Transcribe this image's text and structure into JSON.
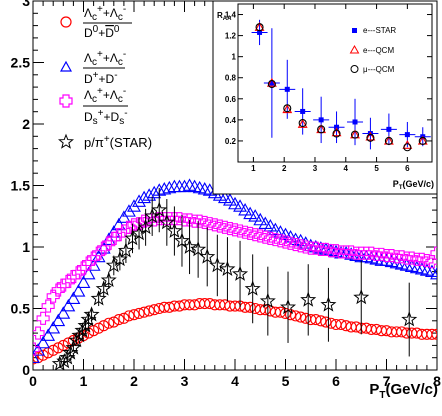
{
  "chart_data": [
    {
      "type": "scatter",
      "xlabel": "P",
      "xlabel_sub": "T",
      "xlabel_unit": "(GeV/c)",
      "xlim": [
        0,
        8
      ],
      "ylim": [
        0,
        3
      ],
      "xticks": [
        "0",
        "1",
        "2",
        "3",
        "4",
        "5",
        "6",
        "7",
        "8"
      ],
      "yticks": [
        "0",
        "0.5",
        "1",
        "1.5",
        "2",
        "2.5",
        "3"
      ],
      "legend_position": "top-left",
      "legend": [
        {
          "marker": "circle",
          "color": "#ff0000",
          "label": "Λc+ + Λc- / D0 + D0bar"
        },
        {
          "marker": "triangle",
          "color": "#0000ff",
          "label": "Λc+ + Λc- / D+ + D-"
        },
        {
          "marker": "cross",
          "color": "#ff00ff",
          "label": "Λc+ + Λc- / Ds+ + Ds-"
        },
        {
          "marker": "star",
          "color": "#000000",
          "label": "p/π+(STAR)"
        }
      ],
      "series": [
        {
          "name": "Λc/D0",
          "marker": "circle",
          "color": "#ff0000",
          "x": [
            0.0,
            0.1,
            0.2,
            0.3,
            0.4,
            0.5,
            0.6,
            0.7,
            0.8,
            0.9,
            1.0,
            1.1,
            1.2,
            1.3,
            1.4,
            1.5,
            1.6,
            1.7,
            1.8,
            1.9,
            2.0,
            2.1,
            2.2,
            2.3,
            2.4,
            2.5,
            2.6,
            2.7,
            2.8,
            2.9,
            3.0,
            3.1,
            3.2,
            3.3,
            3.4,
            3.5,
            3.6,
            3.7,
            3.8,
            3.9,
            4.0,
            4.1,
            4.2,
            4.3,
            4.4,
            4.5,
            4.6,
            4.7,
            4.8,
            4.9,
            5.0,
            5.1,
            5.2,
            5.3,
            5.4,
            5.5,
            5.6,
            5.7,
            5.8,
            5.9,
            6.0,
            6.1,
            6.2,
            6.3,
            6.4,
            6.5,
            6.6,
            6.7,
            6.8,
            6.9,
            7.0,
            7.1,
            7.2,
            7.3,
            7.4,
            7.5,
            7.6,
            7.7,
            7.8,
            7.9,
            8.0
          ],
          "y": [
            0.09,
            0.1,
            0.12,
            0.14,
            0.16,
            0.18,
            0.2,
            0.22,
            0.24,
            0.26,
            0.28,
            0.3,
            0.32,
            0.34,
            0.36,
            0.38,
            0.39,
            0.41,
            0.42,
            0.44,
            0.45,
            0.46,
            0.47,
            0.48,
            0.49,
            0.5,
            0.51,
            0.51,
            0.52,
            0.52,
            0.53,
            0.53,
            0.53,
            0.54,
            0.54,
            0.54,
            0.53,
            0.53,
            0.53,
            0.52,
            0.52,
            0.52,
            0.51,
            0.51,
            0.5,
            0.49,
            0.49,
            0.48,
            0.47,
            0.47,
            0.46,
            0.45,
            0.44,
            0.43,
            0.42,
            0.41,
            0.41,
            0.4,
            0.39,
            0.38,
            0.37,
            0.37,
            0.36,
            0.35,
            0.35,
            0.34,
            0.34,
            0.33,
            0.33,
            0.32,
            0.32,
            0.31,
            0.31,
            0.31,
            0.3,
            0.3,
            0.3,
            0.29,
            0.29,
            0.29,
            0.29
          ]
        },
        {
          "name": "Λc/D+",
          "marker": "triangle",
          "color": "#0000ff",
          "x": [
            0.0,
            0.1,
            0.2,
            0.3,
            0.4,
            0.5,
            0.6,
            0.7,
            0.8,
            0.9,
            1.0,
            1.1,
            1.2,
            1.3,
            1.4,
            1.5,
            1.6,
            1.7,
            1.8,
            1.9,
            2.0,
            2.1,
            2.2,
            2.3,
            2.4,
            2.5,
            2.6,
            2.7,
            2.8,
            2.9,
            3.0,
            3.1,
            3.2,
            3.3,
            3.4,
            3.5,
            3.6,
            3.7,
            3.8,
            3.9,
            4.0,
            4.1,
            4.2,
            4.3,
            4.4,
            4.5,
            4.6,
            4.7,
            4.8,
            4.9,
            5.0,
            5.1,
            5.2,
            5.3,
            5.4,
            5.5,
            5.6,
            5.7,
            5.8,
            5.9,
            6.0,
            6.1,
            6.2,
            6.3,
            6.4,
            6.5,
            6.6,
            6.7,
            6.8,
            6.9,
            7.0,
            7.1,
            7.2,
            7.3,
            7.4,
            7.5,
            7.6,
            7.7,
            7.8,
            7.9,
            8.0
          ],
          "y": [
            0.1,
            0.16,
            0.22,
            0.28,
            0.34,
            0.4,
            0.46,
            0.52,
            0.58,
            0.64,
            0.71,
            0.78,
            0.85,
            0.92,
            0.99,
            1.06,
            1.12,
            1.18,
            1.24,
            1.29,
            1.33,
            1.37,
            1.4,
            1.42,
            1.44,
            1.46,
            1.47,
            1.48,
            1.49,
            1.49,
            1.49,
            1.5,
            1.49,
            1.48,
            1.47,
            1.46,
            1.44,
            1.42,
            1.4,
            1.38,
            1.35,
            1.33,
            1.3,
            1.27,
            1.25,
            1.22,
            1.19,
            1.17,
            1.14,
            1.12,
            1.1,
            1.08,
            1.06,
            1.05,
            1.03,
            1.01,
            1.0,
            0.99,
            0.98,
            0.97,
            0.96,
            0.95,
            0.95,
            0.94,
            0.93,
            0.92,
            0.92,
            0.91,
            0.9,
            0.89,
            0.89,
            0.88,
            0.87,
            0.86,
            0.85,
            0.84,
            0.83,
            0.82,
            0.81,
            0.8,
            0.78
          ]
        },
        {
          "name": "Λc/Ds",
          "marker": "cross",
          "color": "#ff00ff",
          "x": [
            0.0,
            0.1,
            0.2,
            0.3,
            0.4,
            0.5,
            0.6,
            0.7,
            0.8,
            0.9,
            1.0,
            1.1,
            1.2,
            1.3,
            1.4,
            1.5,
            1.6,
            1.7,
            1.8,
            1.9,
            2.0,
            2.1,
            2.2,
            2.3,
            2.4,
            2.5,
            2.6,
            2.7,
            2.8,
            2.9,
            3.0,
            3.1,
            3.2,
            3.3,
            3.4,
            3.5,
            3.6,
            3.7,
            3.8,
            3.9,
            4.0,
            4.1,
            4.2,
            4.3,
            4.4,
            4.5,
            4.6,
            4.7,
            4.8,
            4.9,
            5.0,
            5.1,
            5.2,
            5.3,
            5.4,
            5.5,
            5.6,
            5.7,
            5.8,
            5.9,
            6.0,
            6.1,
            6.2,
            6.3,
            6.4,
            6.5,
            6.6,
            6.7,
            6.8,
            6.9,
            7.0,
            7.1,
            7.2,
            7.3,
            7.4,
            7.5,
            7.6,
            7.7,
            7.8,
            7.9,
            8.0
          ],
          "y": [
            0.17,
            0.3,
            0.42,
            0.52,
            0.6,
            0.65,
            0.69,
            0.72,
            0.76,
            0.79,
            0.83,
            0.87,
            0.91,
            0.95,
            0.99,
            1.03,
            1.07,
            1.1,
            1.13,
            1.16,
            1.18,
            1.19,
            1.21,
            1.22,
            1.22,
            1.23,
            1.23,
            1.23,
            1.23,
            1.23,
            1.22,
            1.22,
            1.21,
            1.21,
            1.2,
            1.19,
            1.18,
            1.17,
            1.16,
            1.15,
            1.14,
            1.13,
            1.12,
            1.11,
            1.1,
            1.09,
            1.08,
            1.07,
            1.06,
            1.05,
            1.04,
            1.03,
            1.02,
            1.01,
            1.0,
            0.99,
            0.99,
            0.98,
            0.98,
            0.97,
            0.97,
            0.96,
            0.96,
            0.96,
            0.95,
            0.95,
            0.95,
            0.95,
            0.94,
            0.94,
            0.93,
            0.93,
            0.92,
            0.92,
            0.91,
            0.91,
            0.9,
            0.9,
            0.89,
            0.88,
            0.95
          ]
        },
        {
          "name": "p/π+(STAR)",
          "marker": "star",
          "color": "#000000",
          "x": [
            0.53,
            0.62,
            0.68,
            0.74,
            0.8,
            0.86,
            0.92,
            0.98,
            1.04,
            1.1,
            1.16,
            1.3,
            1.4,
            1.5,
            1.6,
            1.72,
            1.84,
            1.97,
            2.1,
            2.23,
            2.36,
            2.5,
            2.65,
            2.8,
            2.95,
            3.1,
            3.27,
            3.45,
            3.65,
            3.85,
            4.1,
            4.35,
            4.65,
            5.05,
            5.45,
            5.85,
            6.5,
            7.45
          ],
          "y": [
            0.05,
            0.07,
            0.1,
            0.14,
            0.18,
            0.24,
            0.28,
            0.32,
            0.36,
            0.41,
            0.45,
            0.58,
            0.66,
            0.73,
            0.85,
            0.9,
            0.97,
            1.07,
            1.11,
            1.16,
            1.25,
            1.3,
            1.2,
            1.13,
            1.05,
            1.0,
            0.98,
            0.92,
            0.85,
            0.82,
            0.78,
            0.66,
            0.56,
            0.51,
            0.57,
            0.53,
            0.59,
            0.41
          ],
          "err": [
            0.02,
            0.02,
            0.02,
            0.02,
            0.03,
            0.03,
            0.03,
            0.04,
            0.04,
            0.05,
            0.05,
            0.06,
            0.06,
            0.07,
            0.08,
            0.09,
            0.1,
            0.12,
            0.13,
            0.15,
            0.16,
            0.18,
            0.19,
            0.2,
            0.21,
            0.22,
            0.23,
            0.24,
            0.25,
            0.26,
            0.27,
            0.28,
            0.28,
            0.29,
            0.29,
            0.3,
            0.3,
            0.3
          ]
        }
      ]
    },
    {
      "type": "scatter",
      "ylabel": "R",
      "ylabel_sub": "AA",
      "xlabel": "P",
      "xlabel_sub": "T",
      "xlabel_unit": "(GeV/c)",
      "xlim": [
        0.5,
        6.8
      ],
      "ylim": [
        0,
        1.5
      ],
      "xticks": [
        "1",
        "2",
        "3",
        "4",
        "5",
        "6"
      ],
      "yticks": [
        "0.2",
        "0.4",
        "0.6",
        "0.8",
        "1",
        "1.2",
        "1.4"
      ],
      "legend_position": "top-right",
      "legend": [
        {
          "marker": "square",
          "color": "#0000ff",
          "label": "e---STAR"
        },
        {
          "marker": "triangle",
          "color": "#ff0000",
          "label": "e---QCM"
        },
        {
          "marker": "circle",
          "color": "#000000",
          "label": "μ---QCM"
        }
      ],
      "series": [
        {
          "name": "e---STAR",
          "marker": "square",
          "color": "#0000ff",
          "x": [
            1.2,
            1.6,
            2.1,
            2.6,
            3.2,
            3.7,
            4.3,
            4.8,
            5.4,
            6.0,
            6.5
          ],
          "y": [
            1.23,
            0.75,
            0.69,
            0.48,
            0.4,
            0.33,
            0.38,
            0.27,
            0.31,
            0.26,
            0.24
          ],
          "err": [
            0.12,
            0.52,
            0.28,
            0.22,
            0.22,
            0.15,
            0.22,
            0.15,
            0.15,
            0.12,
            0.09
          ]
        },
        {
          "name": "e---QCM",
          "marker": "triangle",
          "color": "#ff0000",
          "x": [
            1.2,
            1.6,
            2.1,
            2.6,
            3.2,
            3.7,
            4.3,
            4.8,
            5.4,
            6.0,
            6.5
          ],
          "y": [
            1.28,
            0.75,
            0.5,
            0.36,
            0.31,
            0.28,
            0.26,
            0.24,
            0.2,
            0.16,
            0.2
          ]
        },
        {
          "name": "μ---QCM",
          "marker": "circle",
          "color": "#000000",
          "x": [
            1.2,
            1.6,
            2.1,
            2.6,
            3.2,
            3.7,
            4.3,
            4.8,
            5.4,
            6.0,
            6.5
          ],
          "y": [
            1.28,
            0.74,
            0.51,
            0.37,
            0.31,
            0.27,
            0.26,
            0.23,
            0.2,
            0.14,
            0.2
          ]
        }
      ]
    }
  ]
}
